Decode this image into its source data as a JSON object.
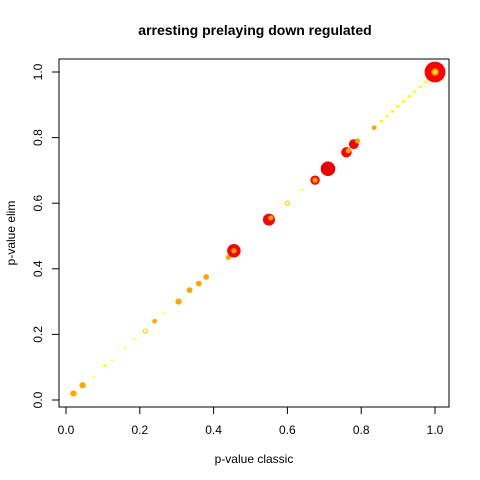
{
  "chart_data": {
    "type": "scatter",
    "title": "arresting prelaying down regulated",
    "xlabel": "p-value classic",
    "ylabel": "p-value elim",
    "xlim": [
      0,
      1
    ],
    "ylim": [
      0,
      1
    ],
    "xticks": [
      "0.0",
      "0.2",
      "0.4",
      "0.6",
      "0.8",
      "1.0"
    ],
    "yticks": [
      "0.0",
      "0.2",
      "0.4",
      "0.6",
      "0.8",
      "1.0"
    ],
    "grid": false,
    "legend": "none",
    "colors": {
      "red": "#ff0000",
      "dark_red": "#e60000",
      "orange": "#ff8c00",
      "orange_light": "#ffa500",
      "yellow": "#ffff00",
      "yellow_soft": "#ffd700"
    },
    "points": [
      {
        "x": 0.02,
        "y": 0.02,
        "size": 1.2,
        "color": "orange_light"
      },
      {
        "x": 0.045,
        "y": 0.045,
        "size": 1.2,
        "color": "orange_light"
      },
      {
        "x": 0.075,
        "y": 0.07,
        "size": 0.4,
        "color": "yellow"
      },
      {
        "x": 0.105,
        "y": 0.105,
        "size": 0.6,
        "color": "yellow"
      },
      {
        "x": 0.125,
        "y": 0.12,
        "size": 0.4,
        "color": "yellow"
      },
      {
        "x": 0.16,
        "y": 0.16,
        "size": 0.4,
        "color": "yellow"
      },
      {
        "x": 0.185,
        "y": 0.185,
        "size": 0.4,
        "color": "yellow"
      },
      {
        "x": 0.215,
        "y": 0.21,
        "size": 0.8,
        "color": "yellow_soft",
        "ring": true
      },
      {
        "x": 0.24,
        "y": 0.24,
        "size": 0.9,
        "color": "orange_light"
      },
      {
        "x": 0.265,
        "y": 0.265,
        "size": 0.4,
        "color": "yellow"
      },
      {
        "x": 0.305,
        "y": 0.3,
        "size": 1.2,
        "color": "orange_light"
      },
      {
        "x": 0.335,
        "y": 0.335,
        "size": 1.1,
        "color": "orange_light"
      },
      {
        "x": 0.36,
        "y": 0.355,
        "size": 1.1,
        "color": "orange_light"
      },
      {
        "x": 0.38,
        "y": 0.375,
        "size": 1.1,
        "color": "orange_light"
      },
      {
        "x": 0.44,
        "y": 0.435,
        "size": 1.0,
        "color": "orange_light"
      },
      {
        "x": 0.455,
        "y": 0.455,
        "size": 2.6,
        "color": "red"
      },
      {
        "x": 0.455,
        "y": 0.455,
        "size": 1.0,
        "color": "orange_light"
      },
      {
        "x": 0.55,
        "y": 0.55,
        "size": 2.3,
        "color": "red"
      },
      {
        "x": 0.555,
        "y": 0.555,
        "size": 1.0,
        "color": "orange_light"
      },
      {
        "x": 0.6,
        "y": 0.6,
        "size": 0.8,
        "color": "yellow_soft",
        "ring": true
      },
      {
        "x": 0.64,
        "y": 0.64,
        "size": 0.4,
        "color": "yellow"
      },
      {
        "x": 0.675,
        "y": 0.67,
        "size": 1.8,
        "color": "red"
      },
      {
        "x": 0.675,
        "y": 0.67,
        "size": 1.0,
        "color": "orange_light"
      },
      {
        "x": 0.71,
        "y": 0.705,
        "size": 2.8,
        "color": "dark_red"
      },
      {
        "x": 0.76,
        "y": 0.755,
        "size": 2.0,
        "color": "red"
      },
      {
        "x": 0.765,
        "y": 0.76,
        "size": 1.0,
        "color": "orange_light"
      },
      {
        "x": 0.78,
        "y": 0.78,
        "size": 1.9,
        "color": "red"
      },
      {
        "x": 0.79,
        "y": 0.79,
        "size": 1.0,
        "color": "orange_light"
      },
      {
        "x": 0.835,
        "y": 0.83,
        "size": 0.9,
        "color": "orange_light"
      },
      {
        "x": 0.855,
        "y": 0.85,
        "size": 0.6,
        "color": "yellow"
      },
      {
        "x": 0.87,
        "y": 0.865,
        "size": 0.6,
        "color": "yellow"
      },
      {
        "x": 0.885,
        "y": 0.88,
        "size": 0.6,
        "color": "yellow"
      },
      {
        "x": 0.9,
        "y": 0.895,
        "size": 0.6,
        "color": "yellow"
      },
      {
        "x": 0.915,
        "y": 0.91,
        "size": 0.6,
        "color": "yellow"
      },
      {
        "x": 0.93,
        "y": 0.925,
        "size": 0.6,
        "color": "yellow"
      },
      {
        "x": 0.945,
        "y": 0.94,
        "size": 0.6,
        "color": "yellow"
      },
      {
        "x": 0.96,
        "y": 0.955,
        "size": 0.6,
        "color": "yellow"
      },
      {
        "x": 0.975,
        "y": 0.97,
        "size": 0.6,
        "color": "yellow"
      },
      {
        "x": 0.985,
        "y": 0.985,
        "size": 1.3,
        "color": "yellow"
      },
      {
        "x": 1.0,
        "y": 1.0,
        "size": 4.0,
        "color": "red"
      },
      {
        "x": 1.0,
        "y": 1.0,
        "size": 1.4,
        "color": "orange_light"
      },
      {
        "x": 1.0,
        "y": 1.0,
        "size": 0.6,
        "color": "yellow"
      }
    ]
  }
}
